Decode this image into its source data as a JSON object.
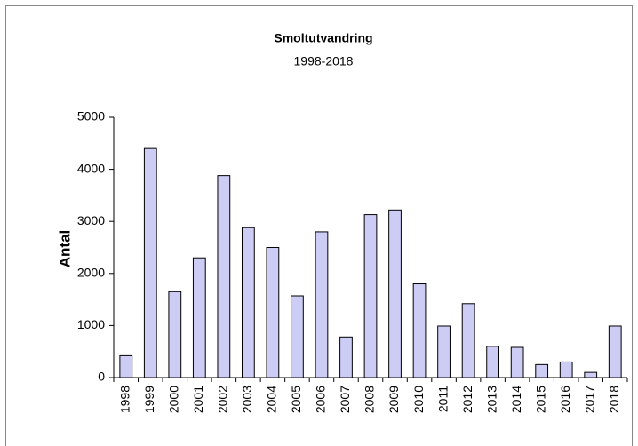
{
  "chart_data": {
    "type": "bar",
    "title": "Smoltutvandring",
    "subtitle": "1998-2018",
    "y_label": "Antal",
    "categories": [
      "1998",
      "1999",
      "2000",
      "2001",
      "2002",
      "2003",
      "2004",
      "2005",
      "2006",
      "2007",
      "2008",
      "2009",
      "2010",
      "2011",
      "2012",
      "2013",
      "2014",
      "2015",
      "2016",
      "2017",
      "2018"
    ],
    "values": [
      420,
      4400,
      1650,
      2300,
      3880,
      2880,
      2500,
      1570,
      2800,
      780,
      3130,
      3220,
      1800,
      990,
      1420,
      600,
      580,
      250,
      300,
      100,
      990
    ],
    "color": "#ccccf5",
    "ylim": [
      0,
      5000
    ],
    "yticks": [
      0,
      1000,
      2000,
      3000,
      4000,
      5000
    ],
    "grid": false
  }
}
